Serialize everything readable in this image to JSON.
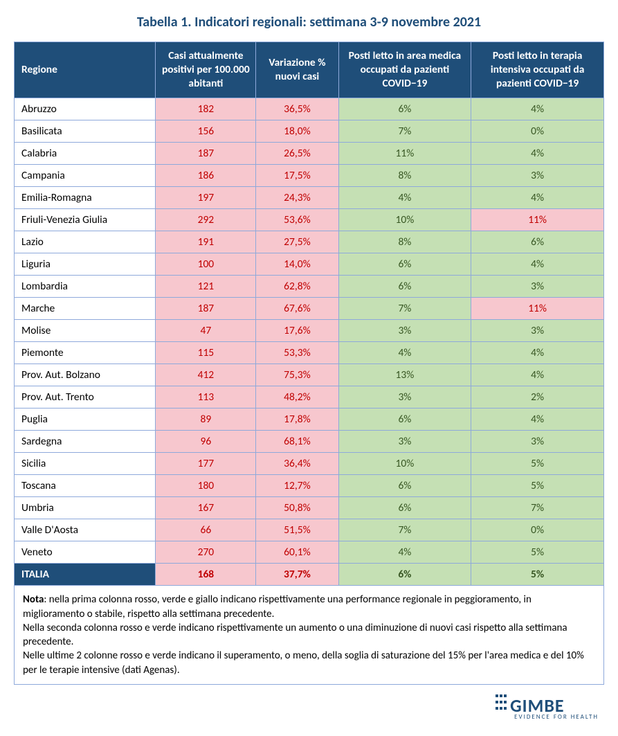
{
  "title": "Tabella 1. Indicatori regionali: settimana 3-9 novembre 2021",
  "colors": {
    "header_bg": "#1f4e79",
    "header_fg": "#ffffff",
    "border": "#8ea9db",
    "pink_bg": "#f7c7ce",
    "pink_fg": "#c00000",
    "green_bg": "#c5e0b4",
    "green_fg": "#385723",
    "white_bg": "#ffffff"
  },
  "columns": [
    {
      "key": "region",
      "label": "Regione",
      "width": "24%"
    },
    {
      "key": "cases",
      "label": "Casi attualmente positivi per 100.000 abitanti",
      "width": "17%"
    },
    {
      "key": "var",
      "label": "Variazione % nuovi casi",
      "width": "14%"
    },
    {
      "key": "med",
      "label": "Posti letto in area medica occupati da pazienti COVID−19",
      "width": "22.5%"
    },
    {
      "key": "icu",
      "label": "Posti letto in terapia intensiva occupati da pazienti COVID−19",
      "width": "22.5%"
    }
  ],
  "rows": [
    {
      "region": "Abruzzo",
      "cases": "182",
      "var": "36,5%",
      "med": "6%",
      "icu": "4%",
      "c_cases": "pink",
      "c_var": "pink",
      "c_med": "green",
      "c_icu": "green"
    },
    {
      "region": "Basilicata",
      "cases": "156",
      "var": "18,0%",
      "med": "7%",
      "icu": "0%",
      "c_cases": "pink",
      "c_var": "pink",
      "c_med": "green",
      "c_icu": "green"
    },
    {
      "region": "Calabria",
      "cases": "187",
      "var": "26,5%",
      "med": "11%",
      "icu": "4%",
      "c_cases": "pink",
      "c_var": "pink",
      "c_med": "green",
      "c_icu": "green"
    },
    {
      "region": "Campania",
      "cases": "186",
      "var": "17,5%",
      "med": "8%",
      "icu": "3%",
      "c_cases": "pink",
      "c_var": "pink",
      "c_med": "green",
      "c_icu": "green"
    },
    {
      "region": "Emilia-Romagna",
      "cases": "197",
      "var": "24,3%",
      "med": "4%",
      "icu": "4%",
      "c_cases": "pink",
      "c_var": "pink",
      "c_med": "green",
      "c_icu": "green"
    },
    {
      "region": "Friuli-Venezia Giulia",
      "cases": "292",
      "var": "53,6%",
      "med": "10%",
      "icu": "11%",
      "c_cases": "pink",
      "c_var": "pink",
      "c_med": "green",
      "c_icu": "pink"
    },
    {
      "region": "Lazio",
      "cases": "191",
      "var": "27,5%",
      "med": "8%",
      "icu": "6%",
      "c_cases": "pink",
      "c_var": "pink",
      "c_med": "green",
      "c_icu": "green"
    },
    {
      "region": "Liguria",
      "cases": "100",
      "var": "14,0%",
      "med": "6%",
      "icu": "4%",
      "c_cases": "pink",
      "c_var": "pink",
      "c_med": "green",
      "c_icu": "green"
    },
    {
      "region": "Lombardia",
      "cases": "121",
      "var": "62,8%",
      "med": "6%",
      "icu": "3%",
      "c_cases": "pink",
      "c_var": "pink",
      "c_med": "green",
      "c_icu": "green"
    },
    {
      "region": "Marche",
      "cases": "187",
      "var": "67,6%",
      "med": "7%",
      "icu": "11%",
      "c_cases": "pink",
      "c_var": "pink",
      "c_med": "green",
      "c_icu": "pink"
    },
    {
      "region": "Molise",
      "cases": "47",
      "var": "17,6%",
      "med": "3%",
      "icu": "3%",
      "c_cases": "pink",
      "c_var": "pink",
      "c_med": "green",
      "c_icu": "green"
    },
    {
      "region": "Piemonte",
      "cases": "115",
      "var": "53,3%",
      "med": "4%",
      "icu": "4%",
      "c_cases": "pink",
      "c_var": "pink",
      "c_med": "green",
      "c_icu": "green"
    },
    {
      "region": "Prov. Aut. Bolzano",
      "cases": "412",
      "var": "75,3%",
      "med": "13%",
      "icu": "4%",
      "c_cases": "pink",
      "c_var": "pink",
      "c_med": "green",
      "c_icu": "green"
    },
    {
      "region": "Prov. Aut. Trento",
      "cases": "113",
      "var": "48,2%",
      "med": "3%",
      "icu": "2%",
      "c_cases": "pink",
      "c_var": "pink",
      "c_med": "green",
      "c_icu": "green"
    },
    {
      "region": "Puglia",
      "cases": "89",
      "var": "17,8%",
      "med": "6%",
      "icu": "4%",
      "c_cases": "pink",
      "c_var": "pink",
      "c_med": "green",
      "c_icu": "green"
    },
    {
      "region": "Sardegna",
      "cases": "96",
      "var": "68,1%",
      "med": "3%",
      "icu": "3%",
      "c_cases": "pink",
      "c_var": "pink",
      "c_med": "green",
      "c_icu": "green"
    },
    {
      "region": "Sicilia",
      "cases": "177",
      "var": "36,4%",
      "med": "10%",
      "icu": "5%",
      "c_cases": "pink",
      "c_var": "pink",
      "c_med": "green",
      "c_icu": "green"
    },
    {
      "region": "Toscana",
      "cases": "180",
      "var": "12,7%",
      "med": "6%",
      "icu": "5%",
      "c_cases": "pink",
      "c_var": "pink",
      "c_med": "green",
      "c_icu": "green"
    },
    {
      "region": "Umbria",
      "cases": "167",
      "var": "50,8%",
      "med": "6%",
      "icu": "7%",
      "c_cases": "pink",
      "c_var": "pink",
      "c_med": "green",
      "c_icu": "green"
    },
    {
      "region": "Valle D'Aosta",
      "cases": "66",
      "var": "51,5%",
      "med": "7%",
      "icu": "0%",
      "c_cases": "pink",
      "c_var": "pink",
      "c_med": "green",
      "c_icu": "green"
    },
    {
      "region": "Veneto",
      "cases": "270",
      "var": "60,1%",
      "med": "4%",
      "icu": "5%",
      "c_cases": "pink",
      "c_var": "pink",
      "c_med": "green",
      "c_icu": "green"
    }
  ],
  "total": {
    "region": "ITALIA",
    "cases": "168",
    "var": "37,7%",
    "med": "6%",
    "icu": "5%",
    "c_cases": "pink",
    "c_var": "pink",
    "c_med": "green",
    "c_icu": "green"
  },
  "note_html": "<b>Nota</b>: nella prima colonna rosso, verde e giallo indicano rispettivamente una performance regionale in peggioramento, in miglioramento o stabile, rispetto alla settimana precedente.<br>Nella seconda colonna rosso e verde indicano rispettivamente un aumento o una diminuzione di nuovi casi rispetto alla settimana precedente.<br>Nelle ultime 2 colonne rosso e verde indicano il superamento, o meno, della soglia di saturazione del 15% per l'area medica e del 10% per le terapie intensive (dati Agenas).",
  "logo": {
    "name": "GIMBE",
    "sub": "EVIDENCE FOR HEALTH"
  }
}
